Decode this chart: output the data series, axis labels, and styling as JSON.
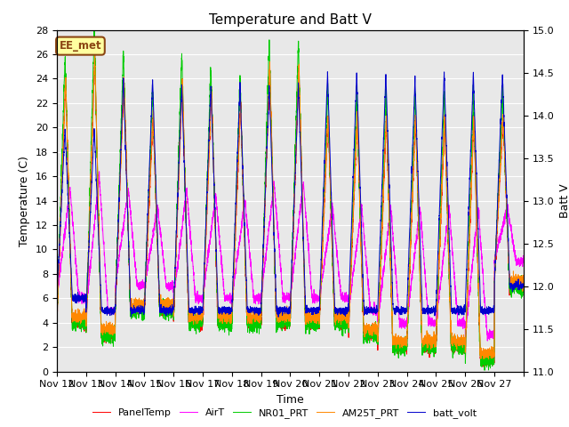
{
  "title": "Temperature and Batt V",
  "xlabel": "Time",
  "ylabel_left": "Temperature (C)",
  "ylabel_right": "Batt V",
  "ylim_left": [
    0,
    28
  ],
  "ylim_right": [
    11.0,
    15.0
  ],
  "yticks_left": [
    0,
    2,
    4,
    6,
    8,
    10,
    12,
    14,
    16,
    18,
    20,
    22,
    24,
    26,
    28
  ],
  "yticks_right": [
    11.0,
    11.5,
    12.0,
    12.5,
    13.0,
    13.5,
    14.0,
    14.5,
    15.0
  ],
  "xtick_labels": [
    "Nov 12",
    "Nov 13",
    "Nov 14",
    "Nov 15",
    "Nov 16",
    "Nov 17",
    "Nov 18",
    "Nov 19",
    "Nov 20",
    "Nov 21",
    "Nov 22",
    "Nov 23",
    "Nov 24",
    "Nov 25",
    "Nov 26",
    "Nov 27"
  ],
  "annotation_text": "EE_met",
  "annotation_box_color": "#8B4513",
  "annotation_bg": "#ffffa0",
  "colors": {
    "PanelTemp": "#ff0000",
    "AirT": "#ff00ff",
    "NR01_PRT": "#00cc00",
    "AM25T_PRT": "#ff8800",
    "batt_volt": "#0000cc"
  },
  "background_color": "#e8e8e8",
  "grid_color": "#ffffff",
  "figure_bg": "#ffffff",
  "title_fontsize": 11,
  "axis_fontsize": 9,
  "tick_fontsize": 8
}
